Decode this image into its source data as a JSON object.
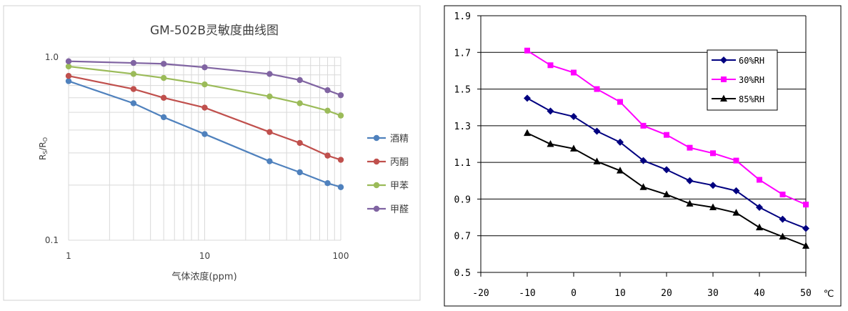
{
  "chart_data": [
    {
      "type": "line",
      "scale": "log-log",
      "title": "GM-502B灵敏度曲线图",
      "xlabel": "气体浓度(ppm)",
      "ylabel_main": "Rs/Ro",
      "ylabel": "Rs/Ro",
      "ylabel_sub1": "S",
      "ylabel_sub2": "O",
      "xlim": [
        1,
        100
      ],
      "ylim": [
        0.1,
        1.0
      ],
      "x_ticks": [
        "1",
        "10",
        "100"
      ],
      "y_ticks": [
        "0.1",
        "1.0"
      ],
      "x": [
        1,
        3,
        5,
        10,
        30,
        50,
        80,
        100
      ],
      "legend_position": "right",
      "series": [
        {
          "name": "酒精",
          "color": "#4f81bd",
          "values": [
            0.74,
            0.56,
            0.47,
            0.38,
            0.27,
            0.235,
            0.205,
            0.195
          ]
        },
        {
          "name": "丙酮",
          "color": "#c0504d",
          "values": [
            0.79,
            0.67,
            0.6,
            0.53,
            0.39,
            0.34,
            0.29,
            0.275
          ]
        },
        {
          "name": "甲苯",
          "color": "#9bbb59",
          "values": [
            0.89,
            0.81,
            0.77,
            0.71,
            0.61,
            0.56,
            0.51,
            0.48
          ]
        },
        {
          "name": "甲醛",
          "color": "#8064a2",
          "values": [
            0.95,
            0.93,
            0.92,
            0.88,
            0.81,
            0.75,
            0.66,
            0.62
          ]
        }
      ]
    },
    {
      "type": "line",
      "title": "",
      "xlabel": "",
      "ylabel": "",
      "x_unit": "℃",
      "xlim": [
        -20,
        50
      ],
      "ylim": [
        0.5,
        1.9
      ],
      "x_ticks": [
        "-20",
        "-10",
        "0",
        "10",
        "20",
        "30",
        "40",
        "50"
      ],
      "y_ticks": [
        "0.5",
        "0.7",
        "0.9",
        "1.1",
        "1.3",
        "1.5",
        "1.7",
        "1.9"
      ],
      "x": [
        -10,
        -5,
        0,
        5,
        10,
        15,
        20,
        25,
        30,
        35,
        40,
        45,
        50
      ],
      "legend_position": "top-right",
      "series": [
        {
          "name": "60%RH",
          "color": "#000080",
          "marker": "diamond",
          "values": [
            1.45,
            1.38,
            1.35,
            1.27,
            1.21,
            1.11,
            1.06,
            1.0,
            0.975,
            0.945,
            0.855,
            0.79,
            0.74
          ]
        },
        {
          "name": "30%RH",
          "color": "#ff00ff",
          "marker": "square",
          "values": [
            1.71,
            1.63,
            1.59,
            1.5,
            1.43,
            1.3,
            1.25,
            1.18,
            1.15,
            1.11,
            1.005,
            0.925,
            0.87
          ]
        },
        {
          "name": "85%RH",
          "color": "#000000",
          "marker": "triangle",
          "values": [
            1.26,
            1.2,
            1.175,
            1.105,
            1.055,
            0.965,
            0.925,
            0.875,
            0.855,
            0.825,
            0.745,
            0.695,
            0.645
          ]
        }
      ]
    }
  ],
  "colors": {
    "grid": "#d9d9d9",
    "frame": "#000000",
    "text": "#404040"
  }
}
